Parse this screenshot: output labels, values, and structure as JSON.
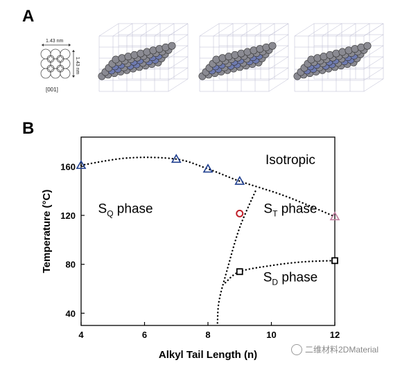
{
  "panel_a": {
    "label": "A",
    "dimension_horizontal": "1.43 nm",
    "dimension_vertical": "1.43 nm",
    "direction": "[001]"
  },
  "panel_b": {
    "label": "B"
  },
  "chart_data": {
    "type": "scatter",
    "title": "",
    "xlabel": "Alkyl Tail Length (n)",
    "ylabel": "Temperature (°C)",
    "xlim": [
      4,
      12
    ],
    "ylim": [
      30,
      184
    ],
    "xticks": [
      4,
      6,
      8,
      10,
      12
    ],
    "yticks": [
      40,
      80,
      120,
      160
    ],
    "series": [
      {
        "marker": "triangle",
        "color": "#1f3f8f",
        "points": [
          [
            4,
            161
          ],
          [
            7,
            166
          ],
          [
            8,
            158
          ],
          [
            9,
            148
          ]
        ]
      },
      {
        "marker": "triangle",
        "color": "#c080a0",
        "points": [
          [
            12,
            119
          ]
        ]
      },
      {
        "marker": "circle",
        "color": "#c0202a",
        "points": [
          [
            9,
            121.5
          ]
        ]
      },
      {
        "marker": "square",
        "color": "#000000",
        "points": [
          [
            9,
            74
          ],
          [
            12,
            83
          ]
        ]
      }
    ],
    "boundaries": [
      {
        "name": "isotropic",
        "points": [
          [
            4,
            161
          ],
          [
            5.5,
            167
          ],
          [
            7,
            166
          ],
          [
            8,
            158
          ],
          [
            9,
            148
          ],
          [
            10.2,
            138
          ],
          [
            11,
            130
          ],
          [
            12,
            119
          ]
        ]
      },
      {
        "name": "sq-st",
        "points": [
          [
            8.3,
            32
          ],
          [
            8.35,
            50
          ],
          [
            8.6,
            75
          ],
          [
            9,
            110
          ],
          [
            9.5,
            140
          ]
        ]
      },
      {
        "name": "st-sd",
        "points": [
          [
            8.55,
            65
          ],
          [
            9,
            74
          ],
          [
            10,
            79
          ],
          [
            11,
            82
          ],
          [
            12,
            83
          ]
        ]
      }
    ],
    "regions": [
      {
        "id": "isotropic",
        "label": "Isotropic",
        "x": 10.6,
        "y": 162
      },
      {
        "id": "sq",
        "main": "S",
        "sub": "Q",
        "rest": " phase",
        "x": 5.4,
        "y": 122
      },
      {
        "id": "st",
        "main": "S",
        "sub": "T",
        "rest": " phase",
        "x": 10.6,
        "y": 122
      },
      {
        "id": "sd",
        "main": "S",
        "sub": "D",
        "rest": " phase",
        "x": 10.6,
        "y": 66
      }
    ]
  },
  "watermark": "二维材料2DMaterial"
}
